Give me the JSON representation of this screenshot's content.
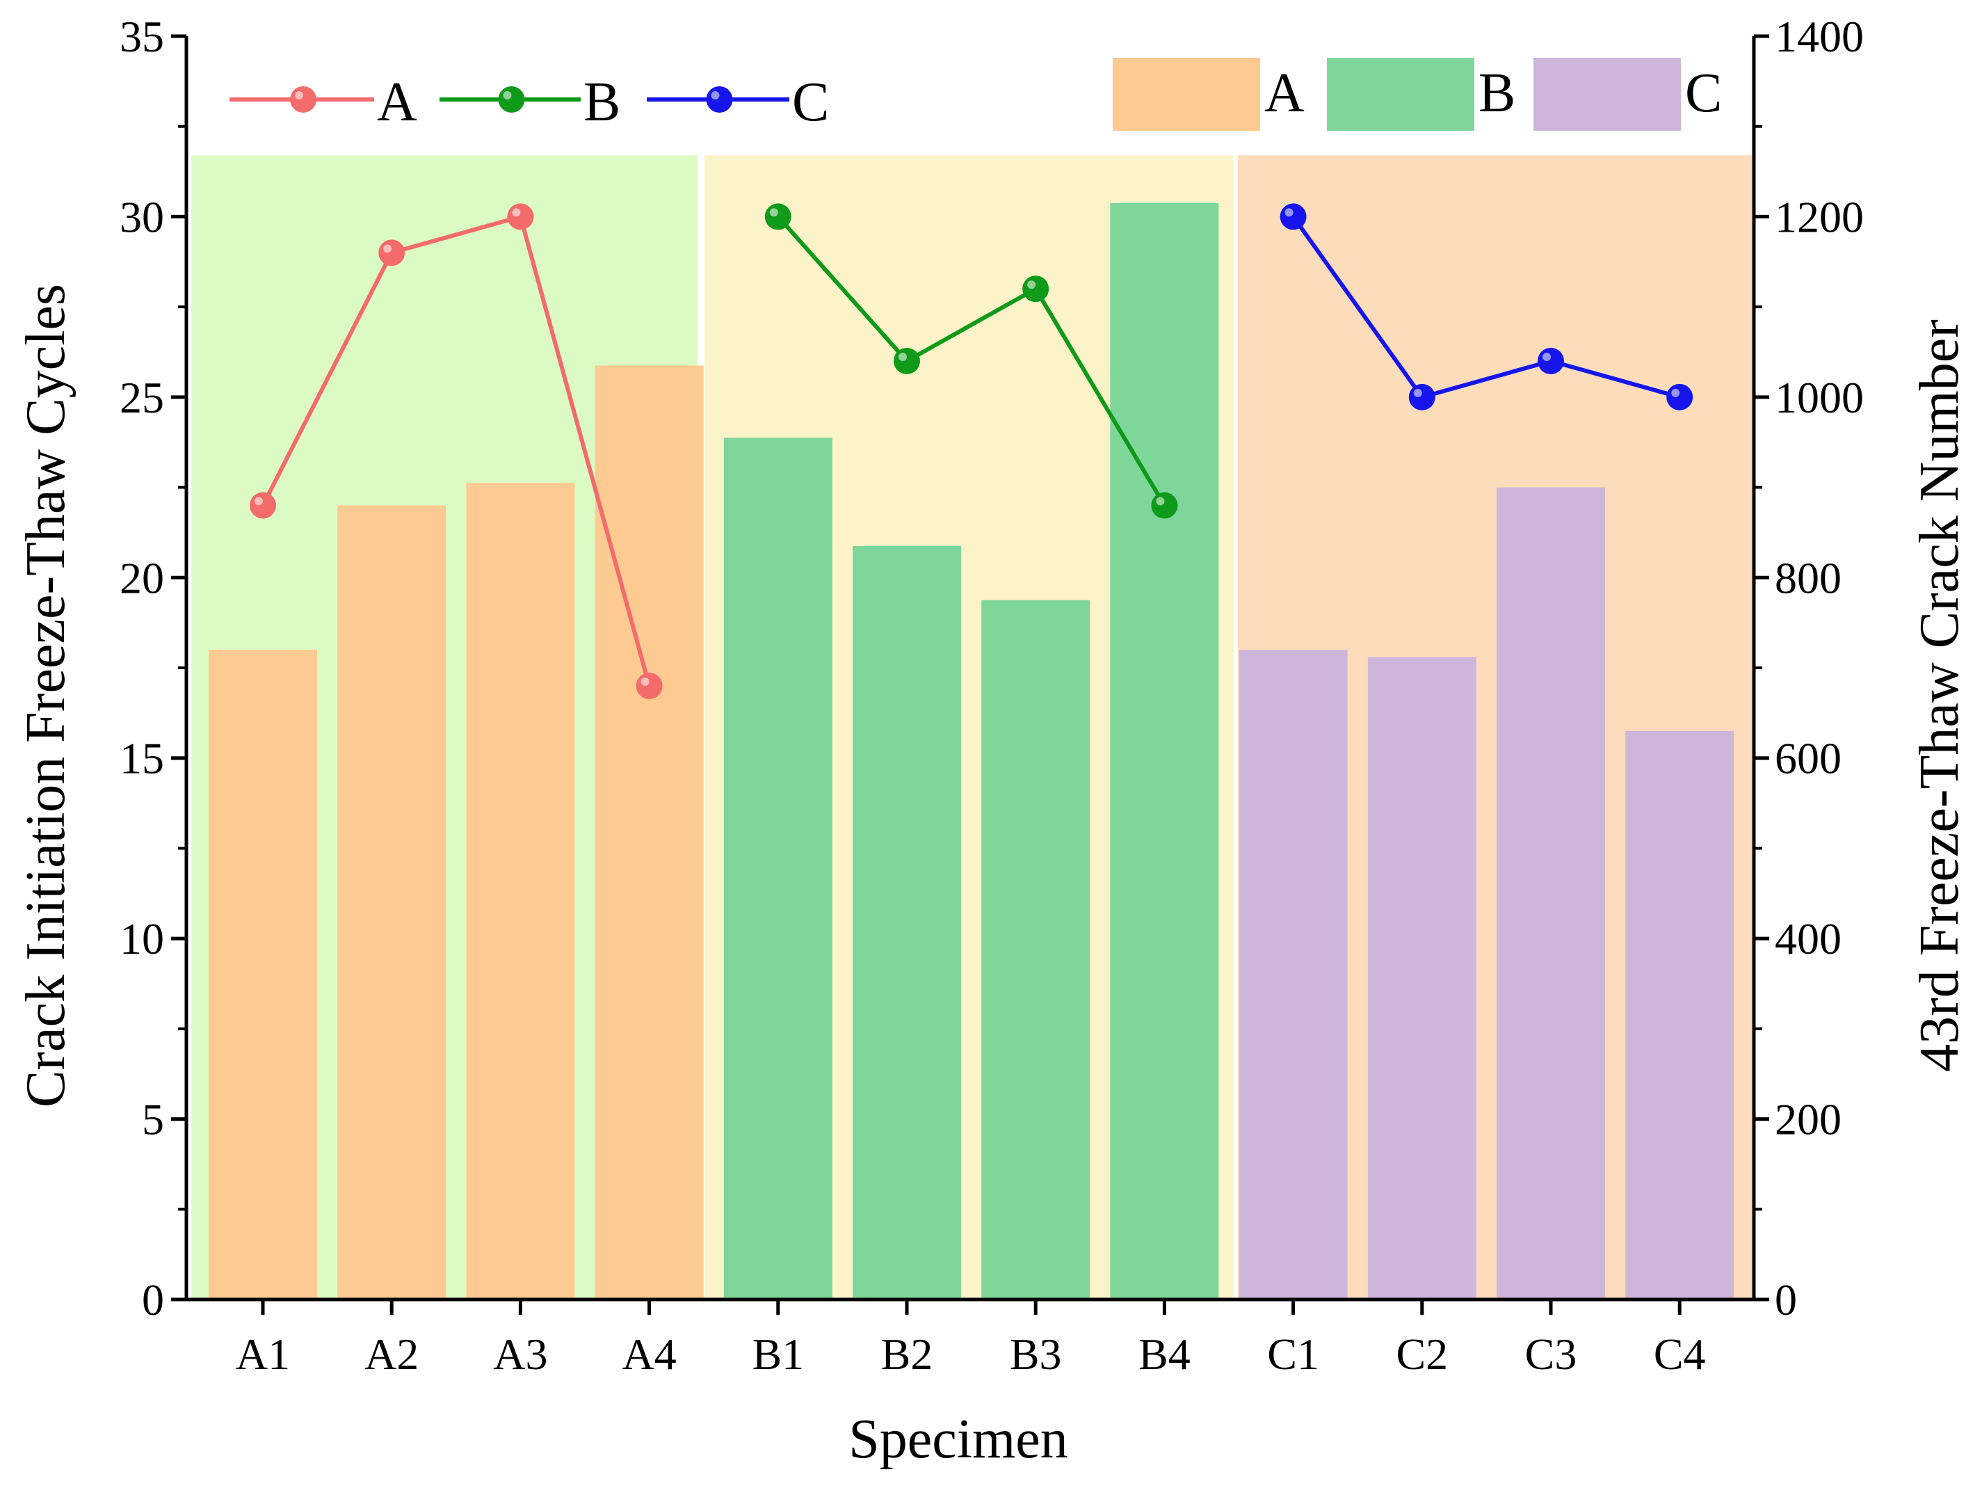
{
  "chart_data": {
    "type": "bar+line",
    "xlabel": "Specimen",
    "ylabel_left": "Crack Initiation Freeze-Thaw Cycles",
    "ylabel_right": "43rd Freeze-Thaw Crack Number",
    "ylim_left": [
      0,
      35
    ],
    "ylim_right": [
      0,
      1400
    ],
    "yticks_left": [
      "0",
      "5",
      "10",
      "15",
      "20",
      "25",
      "30",
      "35"
    ],
    "yticks_right": [
      "0",
      "200",
      "400",
      "600",
      "800",
      "1000",
      "1200",
      "1400"
    ],
    "categories": [
      "A1",
      "A2",
      "A3",
      "A4",
      "B1",
      "B2",
      "B3",
      "B4",
      "C1",
      "C2",
      "C3",
      "C4"
    ],
    "groups": [
      {
        "name": "A",
        "region_color": "#dcfbc4",
        "bar_color": "#fdcb92",
        "line_color": "#f36b6b"
      },
      {
        "name": "B",
        "region_color": "#fcf4c8",
        "bar_color": "#7fd69b",
        "line_color": "#0f9a1a"
      },
      {
        "name": "C",
        "region_color": "#fddcbc",
        "bar_color": "#ceb6db",
        "line_color": "#1515ec"
      }
    ],
    "bar_series": [
      {
        "name": "A",
        "axis": "right",
        "values": [
          720,
          880,
          905,
          1035
        ]
      },
      {
        "name": "B",
        "axis": "right",
        "values": [
          955,
          835,
          775,
          1215
        ]
      },
      {
        "name": "C",
        "axis": "right",
        "values": [
          720,
          712,
          900,
          630
        ]
      }
    ],
    "line_series": [
      {
        "name": "A",
        "axis": "left",
        "values": [
          22,
          29,
          30,
          17
        ]
      },
      {
        "name": "B",
        "axis": "left",
        "values": [
          30,
          26,
          28,
          22
        ]
      },
      {
        "name": "C",
        "axis": "left",
        "values": [
          30,
          25,
          26,
          25
        ]
      }
    ],
    "legend_lines": {
      "position": "top-left",
      "labels": [
        "A",
        "B",
        "C"
      ]
    },
    "legend_bars": {
      "position": "top-right",
      "labels": [
        "A",
        "B",
        "C"
      ]
    }
  }
}
